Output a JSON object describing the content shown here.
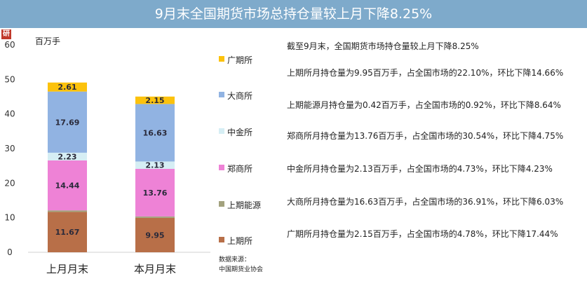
{
  "header": {
    "title": "9月末全国期货市场总持仓量较上月下降8.25%"
  },
  "logo": {
    "icon": "research-logo-icon",
    "color": "#c0392b",
    "text": "研"
  },
  "chart_data": {
    "type": "bar",
    "stacked": true,
    "y_unit_label": "百万手",
    "ylim": [
      0,
      60
    ],
    "y_ticks": [
      0,
      10,
      20,
      30,
      40,
      50,
      60
    ],
    "categories": [
      "上月月末",
      "本月月末"
    ],
    "series": [
      {
        "name": "上期所",
        "color": "#b86f48",
        "values": [
          11.67,
          9.95
        ]
      },
      {
        "name": "上期能源",
        "color": "#a3a27e",
        "values": [
          0.46,
          0.42
        ]
      },
      {
        "name": "郑商所",
        "color": "#ee82d6",
        "values": [
          14.44,
          13.76
        ]
      },
      {
        "name": "中金所",
        "color": "#d6eef4",
        "values": [
          2.23,
          2.13
        ]
      },
      {
        "name": "大商所",
        "color": "#91b3e2",
        "values": [
          17.69,
          16.63
        ]
      },
      {
        "name": "广期所",
        "color": "#fcc20c",
        "values": [
          2.61,
          2.15
        ]
      }
    ],
    "legend_order": [
      "广期所",
      "大商所",
      "中金所",
      "郑商所",
      "上期能源",
      "上期所"
    ],
    "legend_position": "right",
    "grid": false
  },
  "notes": [
    "截至9月末，全国期货市场持仓量较上月下降8.25%",
    "上期所月持仓量为9.95百万手，占全国市场的22.10%，环比下降14.66%",
    "上期能源月持仓量为0.42百万手，占全国市场的0.92%，环比下降8.64%",
    "郑商所月持仓量为13.76百万手，占全国市场的30.54%，环比下降4.75%",
    "中金所月持仓量为2.13百万手，占全国市场的4.73%，环比下降4.23%",
    "大商所月持仓量为16.63百万手，占全国市场的36.91%，环比下降6.03%",
    "广期所月持仓量为2.15百万手，占全国市场的4.78%，环比下降17.44%"
  ],
  "source": {
    "label": "数据来源：",
    "org": "中国期货业协会"
  }
}
